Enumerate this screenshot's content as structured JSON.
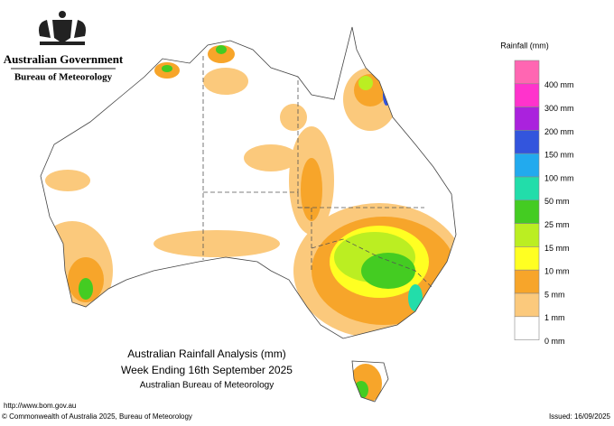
{
  "header": {
    "government": "Australian Government",
    "agency": "Bureau of Meteorology"
  },
  "legend": {
    "title": "Rainfall (mm)",
    "items": [
      {
        "color": "#ff66b2",
        "label": "400 mm"
      },
      {
        "color": "#ff33cc",
        "label": "300 mm"
      },
      {
        "color": "#aa22dd",
        "label": "200 mm"
      },
      {
        "color": "#3355dd",
        "label": "150 mm"
      },
      {
        "color": "#22aaee",
        "label": "100 mm"
      },
      {
        "color": "#22ddaa",
        "label": "50 mm"
      },
      {
        "color": "#44cc22",
        "label": "25 mm"
      },
      {
        "color": "#bbee22",
        "label": "15 mm"
      },
      {
        "color": "#ffff22",
        "label": "10 mm"
      },
      {
        "color": "#f7a52a",
        "label": "5 mm"
      },
      {
        "color": "#fbc97c",
        "label": "1 mm"
      },
      {
        "color": "#ffffff",
        "label": "0 mm"
      }
    ]
  },
  "title": {
    "line1": "Australian Rainfall Analysis (mm)",
    "line2": "Week Ending 16th September 2025",
    "line3": "Australian Bureau of Meteorology"
  },
  "footer": {
    "url": "http://www.bom.gov.au",
    "copyright": "© Commonwealth of Australia 2025, Bureau of Meteorology",
    "issued": "Issued: 16/09/2025"
  }
}
